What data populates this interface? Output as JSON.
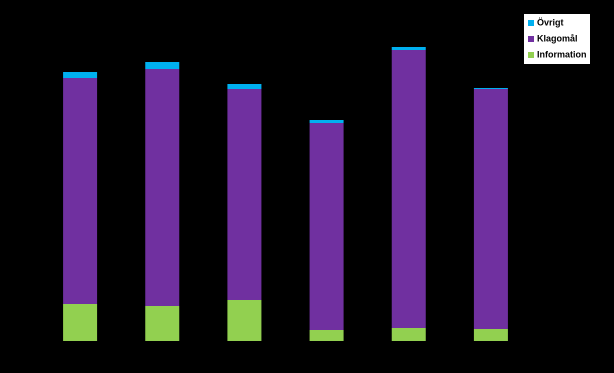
{
  "chart_data": {
    "type": "stacked_bar",
    "categories": [
      null,
      null,
      null,
      null,
      null,
      null
    ],
    "series": [
      {
        "name": "Information",
        "color": "#92d050",
        "values": [
          37,
          35,
          41,
          11,
          13,
          12
        ]
      },
      {
        "name": "Klagomål",
        "color": "#7030a0",
        "values": [
          226,
          237,
          211,
          207,
          278,
          240
        ]
      },
      {
        "name": "Övrigt",
        "color": "#00b0f0",
        "values": [
          6,
          7,
          5,
          3,
          3,
          1
        ]
      }
    ],
    "ylim": [
      0,
      300
    ],
    "legend": "top-right"
  }
}
